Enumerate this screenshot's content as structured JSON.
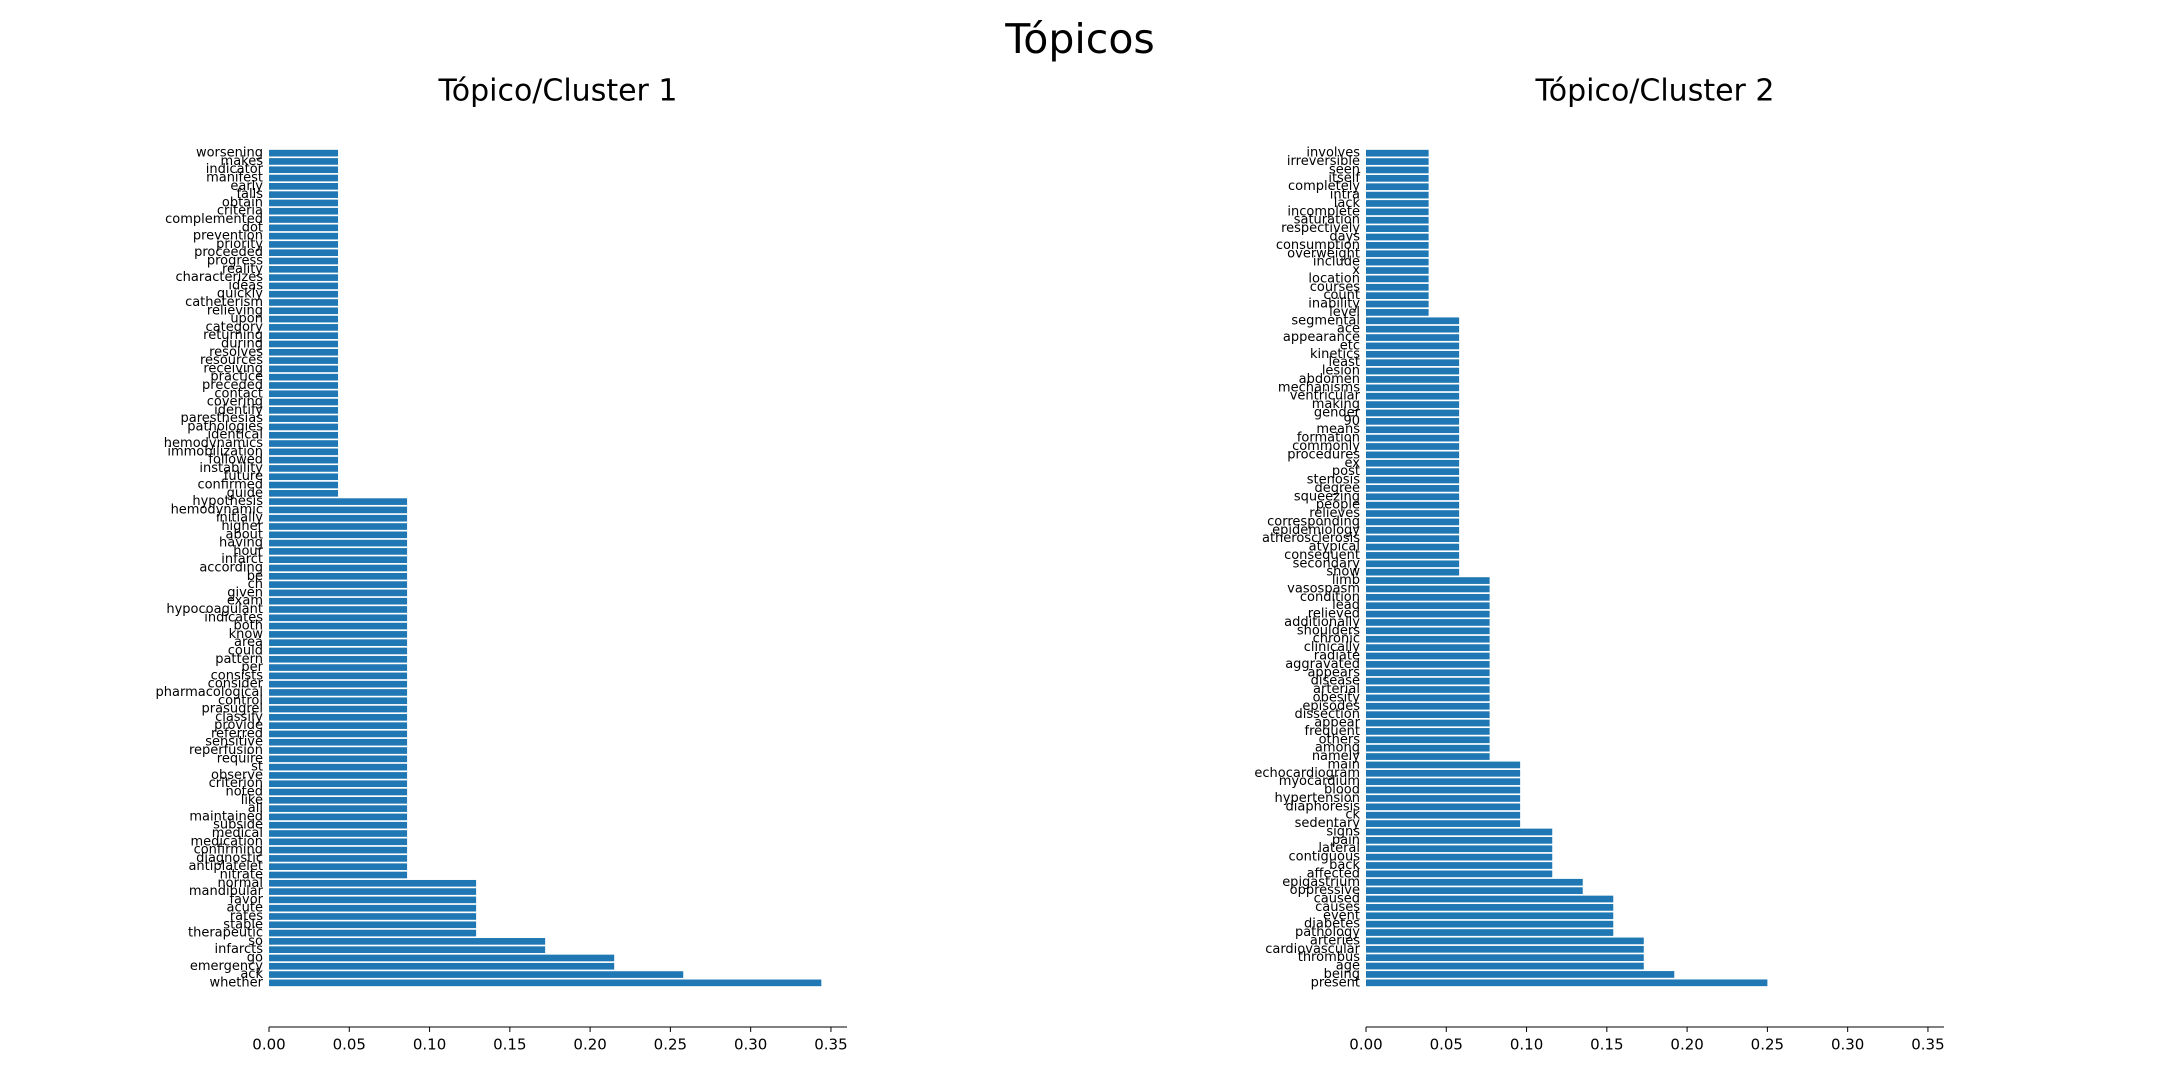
{
  "title": "Tópicos",
  "chart_data": [
    {
      "type": "barh",
      "title": "Tópico/Cluster 1",
      "color": "#1f77b4",
      "categories": [
        "worsening",
        "makes",
        "indicator",
        "manifest",
        "early",
        "falls",
        "obtain",
        "criteria",
        "complemented",
        "dot",
        "prevention",
        "priority",
        "proceeded",
        "progress",
        "reality",
        "characterizes",
        "ideas",
        "quickly",
        "catheterism",
        "relieving",
        "upon",
        "category",
        "returning",
        "during",
        "resolves",
        "resources",
        "receiving",
        "practice",
        "preceded",
        "contact",
        "covering",
        "identify",
        "paresthesias",
        "pathologies",
        "identical",
        "hemodynamics",
        "immobilization",
        "followed",
        "instability",
        "future",
        "confirmed",
        "guide",
        "hypothesis",
        "hemodynamic",
        "initially",
        "higher",
        "about",
        "having",
        "hour",
        "infarct",
        "according",
        "be",
        "ch",
        "given",
        "exam",
        "hypocoagulant",
        "indicates",
        "both",
        "know",
        "area",
        "could",
        "pattern",
        "per",
        "consists",
        "consider",
        "pharmacological",
        "control",
        "prasugrel",
        "classify",
        "provide",
        "referred",
        "sensitive",
        "reperfusion",
        "require",
        "st",
        "observe",
        "criterion",
        "noted",
        "like",
        "all",
        "maintained",
        "subside",
        "medical",
        "medication",
        "confirming",
        "diagnostic",
        "antiplatelet",
        "nitrate",
        "normal",
        "mandibular",
        "favor",
        "acute",
        "rates",
        "stable",
        "therapeutic",
        "so",
        "infarcts",
        "go",
        "emergency",
        "ack",
        "whether"
      ],
      "values": [
        0.043,
        0.043,
        0.043,
        0.043,
        0.043,
        0.043,
        0.043,
        0.043,
        0.043,
        0.043,
        0.043,
        0.043,
        0.043,
        0.043,
        0.043,
        0.043,
        0.043,
        0.043,
        0.043,
        0.043,
        0.043,
        0.043,
        0.043,
        0.043,
        0.043,
        0.043,
        0.043,
        0.043,
        0.043,
        0.043,
        0.043,
        0.043,
        0.043,
        0.043,
        0.043,
        0.043,
        0.043,
        0.043,
        0.043,
        0.043,
        0.043,
        0.043,
        0.086,
        0.086,
        0.086,
        0.086,
        0.086,
        0.086,
        0.086,
        0.086,
        0.086,
        0.086,
        0.086,
        0.086,
        0.086,
        0.086,
        0.086,
        0.086,
        0.086,
        0.086,
        0.086,
        0.086,
        0.086,
        0.086,
        0.086,
        0.086,
        0.086,
        0.086,
        0.086,
        0.086,
        0.086,
        0.086,
        0.086,
        0.086,
        0.086,
        0.086,
        0.086,
        0.086,
        0.086,
        0.086,
        0.086,
        0.086,
        0.086,
        0.086,
        0.086,
        0.086,
        0.086,
        0.086,
        0.129,
        0.129,
        0.129,
        0.129,
        0.129,
        0.129,
        0.129,
        0.172,
        0.172,
        0.215,
        0.215,
        0.258,
        0.344
      ],
      "xlim": [
        0,
        0.36
      ],
      "xticks": [
        {
          "value": 0,
          "label": "0.00"
        },
        {
          "value": 0.05,
          "label": "0.05"
        },
        {
          "value": 0.1,
          "label": "0.10"
        },
        {
          "value": 0.15,
          "label": "0.15"
        },
        {
          "value": 0.2,
          "label": "0.20"
        },
        {
          "value": 0.25,
          "label": "0.25"
        },
        {
          "value": 0.3,
          "label": "0.30"
        },
        {
          "value": 0.35,
          "label": "0.35"
        }
      ]
    },
    {
      "type": "barh",
      "title": "Tópico/Cluster 2",
      "color": "#1f77b4",
      "categories": [
        "involves",
        "irreversible",
        "seen",
        "itself",
        "completely",
        "intra",
        "lack",
        "incomplete",
        "saturation",
        "respectively",
        "days",
        "consumption",
        "overweight",
        "include",
        "x",
        "location",
        "courses",
        "count",
        "inability",
        "level",
        "segmental",
        "ace",
        "appearance",
        "etc",
        "kinetics",
        "least",
        "lesion",
        "abdomen",
        "mechanisms",
        "ventricular",
        "making",
        "gender",
        "90",
        "means",
        "formation",
        "commonly",
        "procedures",
        "ex",
        "post",
        "stenosis",
        "degree",
        "squeezing",
        "people",
        "relieves",
        "corresponding",
        "epidemiology",
        "atherosclerosis",
        "atypical",
        "consequent",
        "secondary",
        "show",
        "limb",
        "vasospasm",
        "condition",
        "lead",
        "relieved",
        "additionally",
        "shoulders",
        "chronic",
        "clinically",
        "radiate",
        "aggravated",
        "appears",
        "disease",
        "arterial",
        "obesity",
        "episodes",
        "dissection",
        "appear",
        "frequent",
        "others",
        "among",
        "namely",
        "main",
        "echocardiogram",
        "myocardium",
        "blood",
        "hypertension",
        "diaphoresis",
        "ck",
        "sedentary",
        "signs",
        "pain",
        "lateral",
        "contiguous",
        "back",
        "affected",
        "epigastrium",
        "oppressive",
        "caused",
        "causes",
        "event",
        "diabetes",
        "pathology",
        "arteries",
        "cardiovascular",
        "thrombus",
        "age",
        "being",
        "present"
      ],
      "values": [
        0.039,
        0.039,
        0.039,
        0.039,
        0.039,
        0.039,
        0.039,
        0.039,
        0.039,
        0.039,
        0.039,
        0.039,
        0.039,
        0.039,
        0.039,
        0.039,
        0.039,
        0.039,
        0.039,
        0.039,
        0.058,
        0.058,
        0.058,
        0.058,
        0.058,
        0.058,
        0.058,
        0.058,
        0.058,
        0.058,
        0.058,
        0.058,
        0.058,
        0.058,
        0.058,
        0.058,
        0.058,
        0.058,
        0.058,
        0.058,
        0.058,
        0.058,
        0.058,
        0.058,
        0.058,
        0.058,
        0.058,
        0.058,
        0.058,
        0.058,
        0.058,
        0.077,
        0.077,
        0.077,
        0.077,
        0.077,
        0.077,
        0.077,
        0.077,
        0.077,
        0.077,
        0.077,
        0.077,
        0.077,
        0.077,
        0.077,
        0.077,
        0.077,
        0.077,
        0.077,
        0.077,
        0.077,
        0.077,
        0.096,
        0.096,
        0.096,
        0.096,
        0.096,
        0.096,
        0.096,
        0.096,
        0.116,
        0.116,
        0.116,
        0.116,
        0.116,
        0.116,
        0.135,
        0.135,
        0.154,
        0.154,
        0.154,
        0.154,
        0.154,
        0.173,
        0.173,
        0.173,
        0.173,
        0.192,
        0.25
      ],
      "xlim": [
        0,
        0.36
      ],
      "xticks": [
        {
          "value": 0,
          "label": "0.00"
        },
        {
          "value": 0.05,
          "label": "0.05"
        },
        {
          "value": 0.1,
          "label": "0.10"
        },
        {
          "value": 0.15,
          "label": "0.15"
        },
        {
          "value": 0.2,
          "label": "0.20"
        },
        {
          "value": 0.25,
          "label": "0.25"
        },
        {
          "value": 0.3,
          "label": "0.30"
        },
        {
          "value": 0.35,
          "label": "0.35"
        }
      ]
    }
  ]
}
